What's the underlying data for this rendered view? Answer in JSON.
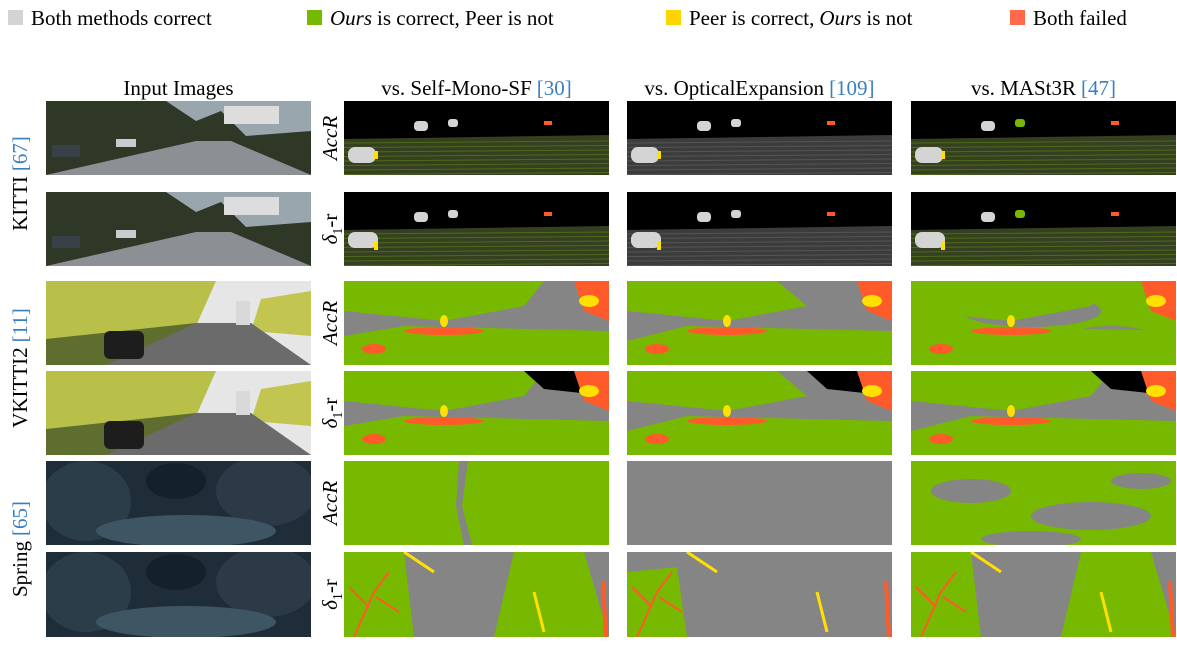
{
  "legend": [
    {
      "color": "#d4d4d4",
      "parts": [
        {
          "text": "Both methods correct"
        }
      ]
    },
    {
      "color": "#76b900",
      "parts": [
        {
          "text": "Ours",
          "italic": true
        },
        {
          "text": "is correct, Peer is not"
        }
      ]
    },
    {
      "color": "#ffd400",
      "parts": [
        {
          "text": "Peer is correct,"
        },
        {
          "text": "Ours",
          "italic": true
        },
        {
          "text": "is not"
        }
      ]
    },
    {
      "color": "#ff6a4d",
      "parts": [
        {
          "text": "Both failed"
        }
      ]
    }
  ],
  "columns": [
    {
      "text": "Input Images"
    },
    {
      "text": "vs. Self-Mono-SF",
      "cite": "[30]"
    },
    {
      "text": "vs. OpticalExpansion",
      "cite": "[109]"
    },
    {
      "text": "vs. MASt3R",
      "cite": "[47]"
    }
  ],
  "datasets": [
    {
      "name": "KITTI",
      "cite": "[67]",
      "metrics": [
        {
          "parts": [
            {
              "text": "AccR",
              "italic": true
            }
          ]
        },
        {
          "parts": [
            {
              "text": "δ",
              "italic": true
            },
            {
              "text": "1",
              "sub": true
            },
            {
              "text": "-r"
            }
          ]
        }
      ]
    },
    {
      "name": "VKITTI2",
      "cite": "[11]",
      "metrics": [
        {
          "parts": [
            {
              "text": "AccR",
              "italic": true
            }
          ]
        },
        {
          "parts": [
            {
              "text": "δ",
              "italic": true
            },
            {
              "text": "1",
              "sub": true
            },
            {
              "text": "-r"
            }
          ]
        }
      ]
    },
    {
      "name": "Spring",
      "cite": "[65]",
      "metrics": [
        {
          "parts": [
            {
              "text": "AccR",
              "italic": true
            }
          ]
        },
        {
          "parts": [
            {
              "text": "δ",
              "italic": true
            },
            {
              "text": "1",
              "sub": true
            },
            {
              "text": "-r"
            }
          ]
        }
      ]
    }
  ]
}
